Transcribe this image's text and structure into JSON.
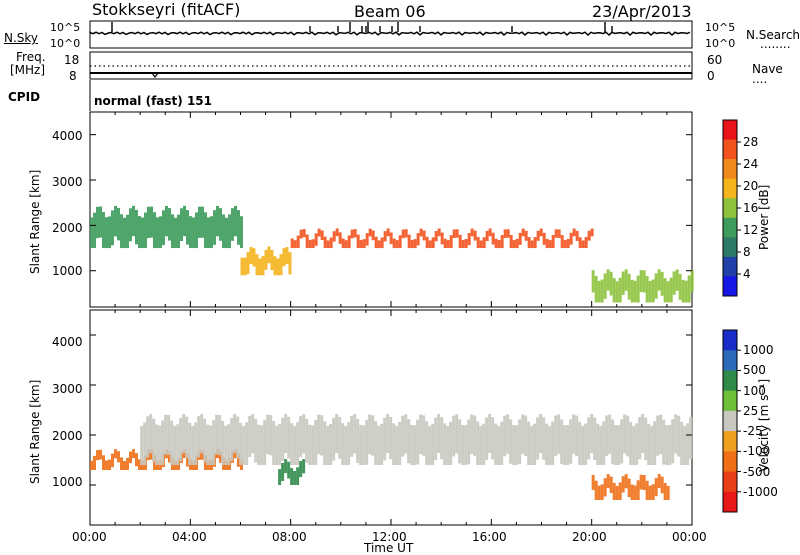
{
  "header": {
    "station": "Stokkseyri (fitACF)",
    "beam": "Beam 06",
    "date": "23/Apr/2013"
  },
  "top_panels": {
    "nsky_label": "N.Sky",
    "nsearch_label": "N.Search",
    "nsearch_dots": "........",
    "power_left_ticks": [
      "10^5",
      "10^0"
    ],
    "power_right_ticks": [
      "10^5",
      "10^0"
    ],
    "freq_label": "Freq.",
    "freq_unit": "[MHz]",
    "freq_ticks": [
      "18",
      "8"
    ],
    "nave_label": "Nave",
    "nave_dots": "....",
    "nave_ticks": [
      "60",
      "0"
    ],
    "cpid_label": "CPID",
    "cpid_value": "normal (fast) 151"
  },
  "chart_data": [
    {
      "type": "heatmap",
      "name": "power",
      "ylabel": "Slant Range [km]",
      "xlabel": "",
      "ylim": [
        200,
        4500
      ],
      "yticks": [
        "1000",
        "2000",
        "3000",
        "4000"
      ],
      "colorbar_label": "Power [dB]",
      "colorbar_ticks": [
        "28",
        "24",
        "20",
        "16",
        "12",
        "8",
        "4"
      ],
      "colorbar_colors": [
        "#e8141a",
        "#f2521e",
        "#f08a1c",
        "#f4b41e",
        "#8ec23e",
        "#3d9b5c",
        "#2d7a67",
        "#2140a8",
        "#1616e6"
      ],
      "bands": [
        {
          "x": [
            0,
            6
          ],
          "range": [
            1500,
            2300
          ],
          "level": 10
        },
        {
          "x": [
            6,
            8
          ],
          "range": [
            900,
            1400
          ],
          "level": 20
        },
        {
          "x": [
            8,
            20
          ],
          "range": [
            1500,
            1800
          ],
          "level": 24
        },
        {
          "x": [
            20,
            24
          ],
          "range": [
            300,
            900
          ],
          "level": 18
        }
      ]
    },
    {
      "type": "heatmap",
      "name": "velocity",
      "ylabel": "Slant Range [km]",
      "xlabel": "Time UT",
      "x_ticks": [
        "00:00",
        "04:00",
        "08:00",
        "12:00",
        "16:00",
        "20:00",
        "00:00"
      ],
      "ylim": [
        200,
        4500
      ],
      "yticks": [
        "1000",
        "2000",
        "3000",
        "4000"
      ],
      "colorbar_label": "Velocity [m s⁻¹]",
      "colorbar_ticks": [
        "1000",
        "500",
        "100",
        "25",
        "-25",
        "-100",
        "-500",
        "-1000"
      ],
      "colorbar_colors": [
        "#1a2cc8",
        "#2d6ab8",
        "#2f8a4a",
        "#6fbf3a",
        "#c8c8c0",
        "#f0a020",
        "#f07018",
        "#e84018",
        "#e81818"
      ],
      "bands": [
        {
          "x": [
            0,
            6
          ],
          "range": [
            1300,
            1600
          ],
          "velocity": -300
        },
        {
          "x": [
            7.5,
            8.5
          ],
          "range": [
            1000,
            1400
          ],
          "velocity": 150
        },
        {
          "x": [
            2,
            24
          ],
          "range": [
            1400,
            2300
          ],
          "velocity": 0
        },
        {
          "x": [
            20,
            23
          ],
          "range": [
            700,
            1100
          ],
          "velocity": -400
        }
      ]
    }
  ]
}
